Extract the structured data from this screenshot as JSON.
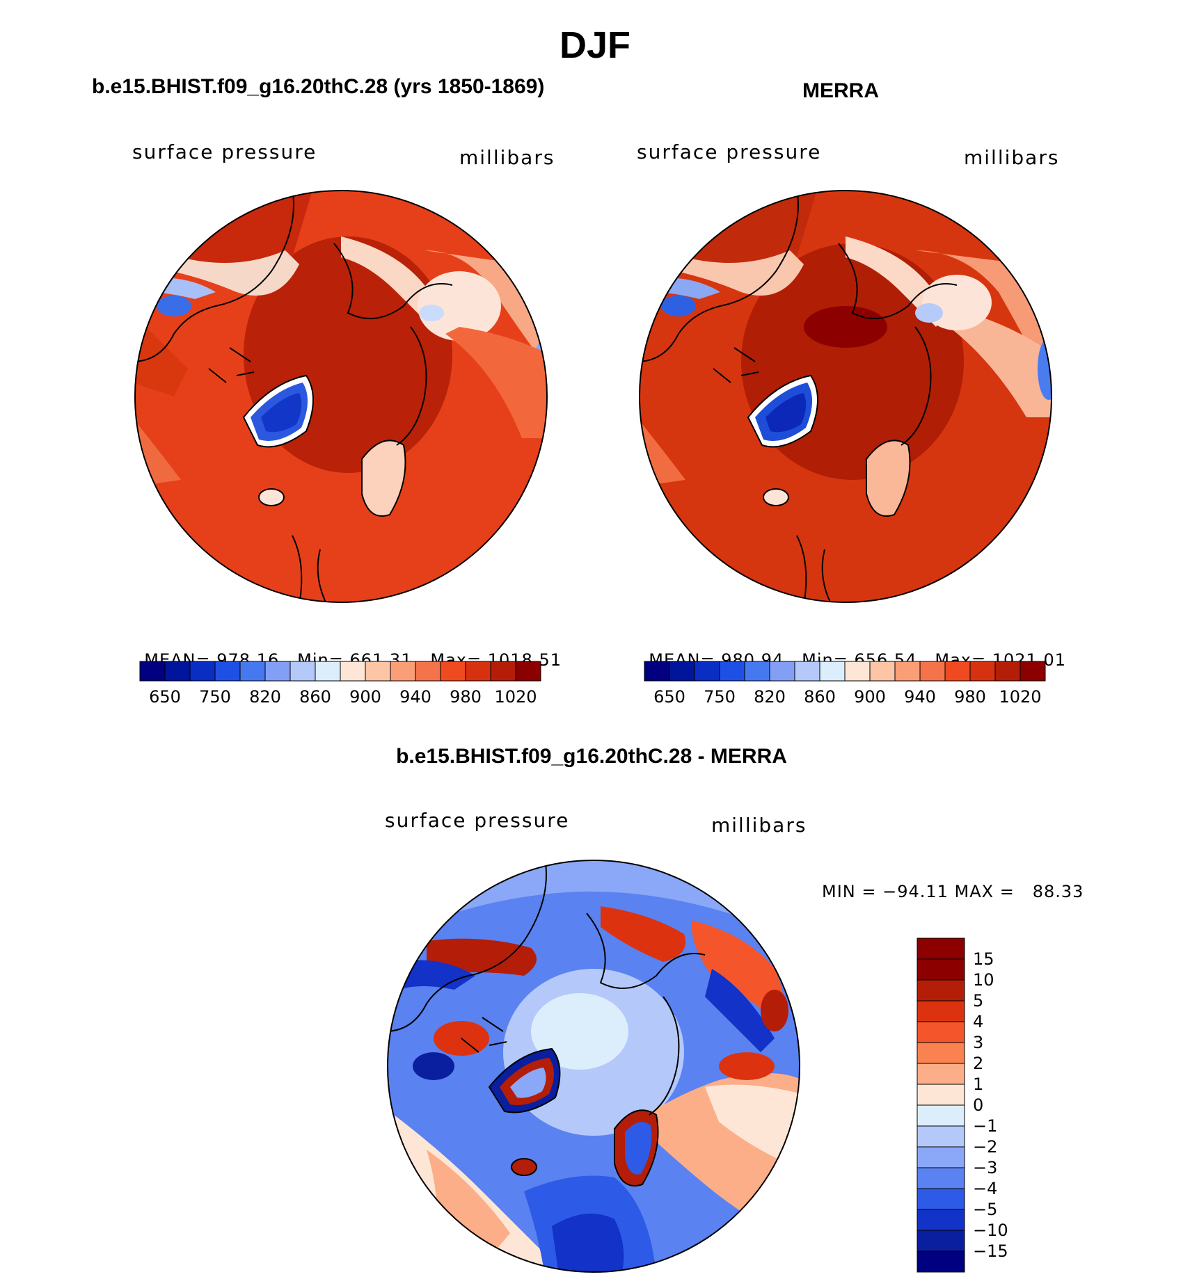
{
  "main_title": "DJF",
  "chart_data": [
    {
      "type": "heatmap",
      "projection": "polar-stereographic-north",
      "title": "b.e15.BHIST.f09_g16.20thC.28 (yrs 1850-1869)",
      "left_label": "surface pressure",
      "right_label": "millibars",
      "stats": {
        "mean_label": "MEAN=",
        "mean": "978.16",
        "min_label": "Min=",
        "min": "661.31",
        "max_label": "Max=",
        "max": "1018.51"
      },
      "colorbar_ticks": [
        "650",
        "750",
        "820",
        "860",
        "900",
        "940",
        "980",
        "1020"
      ]
    },
    {
      "type": "heatmap",
      "projection": "polar-stereographic-north",
      "title": "MERRA",
      "left_label": "surface pressure",
      "right_label": "millibars",
      "stats": {
        "mean_label": "MEAN=",
        "mean": "980.94",
        "min_label": "Min=",
        "min": "656.54",
        "max_label": "Max=",
        "max": "1021.01"
      },
      "colorbar_ticks": [
        "650",
        "750",
        "820",
        "860",
        "900",
        "940",
        "980",
        "1020"
      ]
    },
    {
      "type": "heatmap",
      "projection": "polar-stereographic-north",
      "title": "b.e15.BHIST.f09_g16.20thC.28 - MERRA",
      "left_label": "surface pressure",
      "right_label": "millibars",
      "minmax_text": "MIN = −94.11 MAX =   88.33",
      "min": -94.11,
      "max": 88.33,
      "colorbar_ticks": [
        "15",
        "10",
        "5",
        "4",
        "3",
        "2",
        "1",
        "0",
        "−1",
        "−2",
        "−3",
        "−4",
        "−5",
        "−10",
        "−15"
      ]
    }
  ],
  "colors": {
    "pressure_scale": [
      "#000080",
      "#00149c",
      "#0a2dc4",
      "#1e50e6",
      "#4678f0",
      "#829ef5",
      "#b4c8fa",
      "#dceefc",
      "#fde6d6",
      "#fcc5a6",
      "#fa9e78",
      "#f5734a",
      "#f04a20",
      "#d73210",
      "#b41e08",
      "#8c0000"
    ],
    "diff_scale": [
      "#8c0000",
      "#b41e08",
      "#dc3210",
      "#f5552a",
      "#fa8250",
      "#fcae88",
      "#fde6d6",
      "#dceefc",
      "#b4c8fa",
      "#8aa8f7",
      "#5a82f0",
      "#2d5ae6",
      "#1232c8",
      "#0a1ea0",
      "#000080"
    ],
    "coast": "#000000"
  }
}
